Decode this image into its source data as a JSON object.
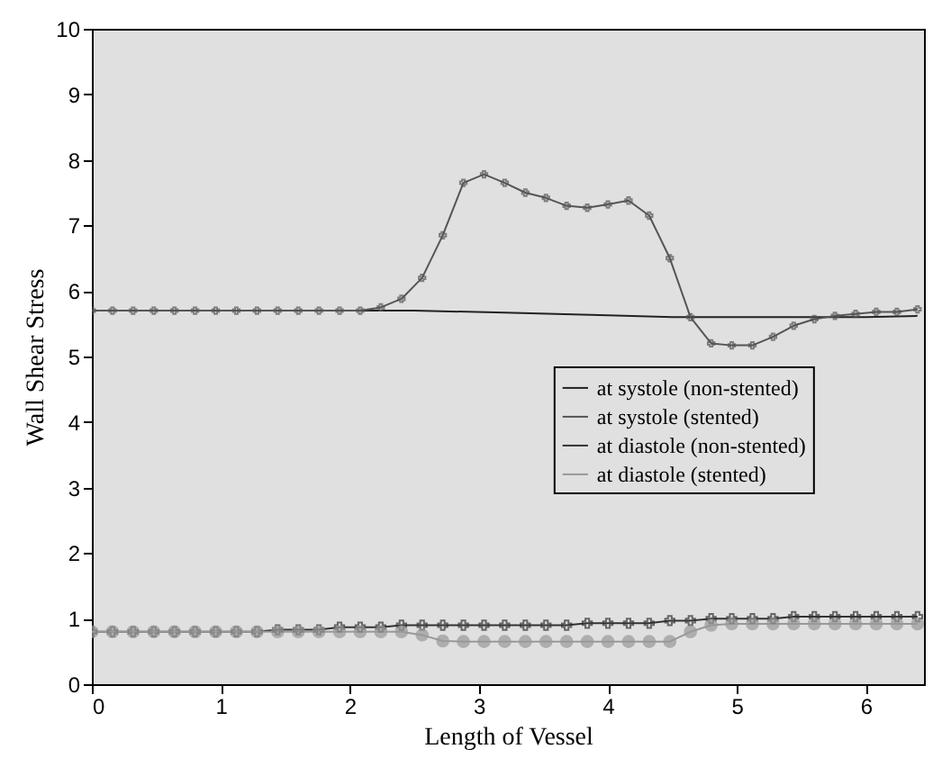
{
  "chart_data": {
    "type": "line",
    "xlabel": "Length of Vessel",
    "ylabel": "Wall Shear Stress",
    "xlim": [
      0,
      6.45
    ],
    "ylim": [
      0,
      10
    ],
    "xticks": [
      0,
      1,
      2,
      3,
      4,
      5,
      6
    ],
    "yticks": [
      0,
      1,
      2,
      3,
      4,
      5,
      6,
      7,
      8,
      9,
      10
    ],
    "grid": false,
    "legend": "right",
    "series": [
      {
        "name": "at systole (non-stented)",
        "color": "#222222",
        "marker": "none",
        "x": [
          0,
          2.5,
          3.2,
          4.0,
          4.5,
          6.0,
          6.4
        ],
        "values": [
          5.7,
          5.7,
          5.67,
          5.63,
          5.6,
          5.6,
          5.62
        ]
      },
      {
        "name": "at systole (stented)",
        "color": "#555555",
        "marker": "cross",
        "x": [
          0,
          0.16,
          0.32,
          0.48,
          0.64,
          0.8,
          0.96,
          1.12,
          1.28,
          1.44,
          1.6,
          1.76,
          1.92,
          2.08,
          2.24,
          2.4,
          2.56,
          2.72,
          2.88,
          3.04,
          3.2,
          3.36,
          3.52,
          3.68,
          3.84,
          4.0,
          4.16,
          4.32,
          4.48,
          4.64,
          4.8,
          4.96,
          5.12,
          5.28,
          5.44,
          5.6,
          5.76,
          5.92,
          6.08,
          6.24,
          6.4
        ],
        "values": [
          5.7,
          5.7,
          5.7,
          5.7,
          5.7,
          5.7,
          5.7,
          5.7,
          5.7,
          5.7,
          5.7,
          5.7,
          5.7,
          5.7,
          5.75,
          5.88,
          6.2,
          6.85,
          7.65,
          7.78,
          7.65,
          7.5,
          7.42,
          7.3,
          7.27,
          7.32,
          7.38,
          7.15,
          6.5,
          5.6,
          5.2,
          5.17,
          5.17,
          5.3,
          5.47,
          5.57,
          5.62,
          5.65,
          5.68,
          5.68,
          5.72
        ]
      },
      {
        "name": "at diastole (non-stented)",
        "color": "#333333",
        "marker": "cross",
        "x": [
          0,
          0.16,
          0.32,
          0.48,
          0.64,
          0.8,
          0.96,
          1.12,
          1.28,
          1.44,
          1.6,
          1.76,
          1.92,
          2.08,
          2.24,
          2.4,
          2.56,
          2.72,
          2.88,
          3.04,
          3.2,
          3.36,
          3.52,
          3.68,
          3.84,
          4.0,
          4.16,
          4.32,
          4.48,
          4.64,
          4.8,
          4.96,
          5.12,
          5.28,
          5.44,
          5.6,
          5.76,
          5.92,
          6.08,
          6.24,
          6.4
        ],
        "values": [
          0.8,
          0.8,
          0.8,
          0.8,
          0.8,
          0.8,
          0.8,
          0.8,
          0.8,
          0.83,
          0.83,
          0.83,
          0.87,
          0.87,
          0.87,
          0.9,
          0.9,
          0.9,
          0.9,
          0.9,
          0.9,
          0.9,
          0.9,
          0.9,
          0.93,
          0.93,
          0.93,
          0.93,
          0.97,
          0.97,
          1.0,
          1.0,
          1.0,
          1.0,
          1.03,
          1.03,
          1.03,
          1.03,
          1.03,
          1.03,
          1.03
        ]
      },
      {
        "name": "at diastole (stented)",
        "color": "#999999",
        "marker": "circle",
        "x": [
          0,
          0.16,
          0.32,
          0.48,
          0.64,
          0.8,
          0.96,
          1.12,
          1.28,
          1.44,
          1.6,
          1.76,
          1.92,
          2.08,
          2.24,
          2.4,
          2.56,
          2.72,
          2.88,
          3.04,
          3.2,
          3.36,
          3.52,
          3.68,
          3.84,
          4.0,
          4.16,
          4.32,
          4.48,
          4.64,
          4.8,
          4.96,
          5.12,
          5.28,
          5.44,
          5.6,
          5.76,
          5.92,
          6.08,
          6.24,
          6.4
        ],
        "values": [
          0.8,
          0.8,
          0.8,
          0.8,
          0.8,
          0.8,
          0.8,
          0.8,
          0.8,
          0.8,
          0.8,
          0.8,
          0.8,
          0.8,
          0.8,
          0.8,
          0.75,
          0.66,
          0.65,
          0.65,
          0.65,
          0.65,
          0.65,
          0.65,
          0.65,
          0.65,
          0.65,
          0.65,
          0.65,
          0.8,
          0.9,
          0.92,
          0.92,
          0.92,
          0.92,
          0.92,
          0.92,
          0.92,
          0.92,
          0.92,
          0.92
        ]
      }
    ]
  }
}
